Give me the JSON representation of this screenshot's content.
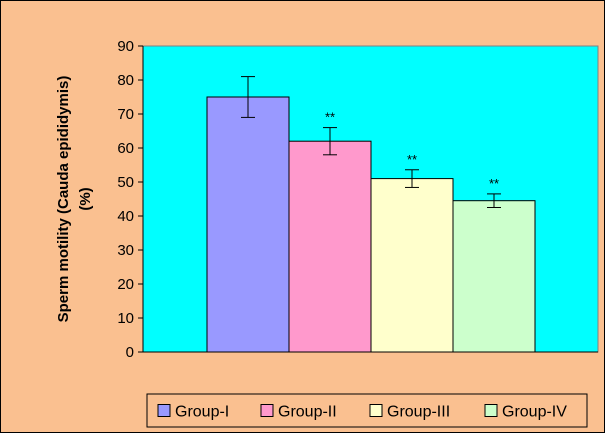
{
  "chart_data": {
    "type": "bar",
    "title": "",
    "xlabel": "",
    "ylabel": "Sperm motility (Cauda epididymis) (%)",
    "ylabel_lines": [
      "Sperm motility (Cauda epididymis)",
      "(%)"
    ],
    "ylim": [
      0,
      90
    ],
    "yticks": [
      0,
      10,
      20,
      30,
      40,
      50,
      60,
      70,
      80,
      90
    ],
    "grid": false,
    "legend_position": "bottom",
    "plot_background": "#00FFFF",
    "page_background": "#FAC090",
    "series": [
      {
        "name": "Group-I",
        "value": 75,
        "error": 6,
        "color": "#9999FF",
        "annotation": ""
      },
      {
        "name": "Group-II",
        "value": 62,
        "error": 4,
        "color": "#FF99CC",
        "annotation": "**"
      },
      {
        "name": "Group-III",
        "value": 51,
        "error": 2.6,
        "color": "#FFFFCC",
        "annotation": "**"
      },
      {
        "name": "Group-IV",
        "value": 44.5,
        "error": 2,
        "color": "#CCFFCC",
        "annotation": "**"
      }
    ]
  }
}
